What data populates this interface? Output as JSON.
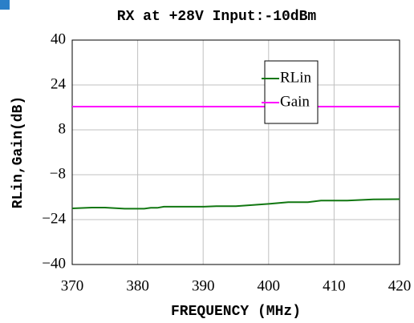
{
  "chart_data": {
    "type": "line",
    "title": "RX  at +28V Input:-10dBm",
    "x_label": "FREQUENCY (MHz)",
    "y_label": "RLin,Gain(dB)",
    "x": [
      370,
      373,
      375,
      378,
      381,
      382,
      383,
      384,
      386,
      390,
      392,
      395,
      400,
      403,
      406,
      408,
      412,
      416,
      420
    ],
    "series": [
      {
        "name": "RLin",
        "color": "#117711",
        "values": [
          -20,
          -19.7,
          -19.7,
          -20.1,
          -20.1,
          -19.8,
          -19.8,
          -19.4,
          -19.4,
          -19.4,
          -19.2,
          -19.2,
          -18.4,
          -17.8,
          -17.8,
          -17.2,
          -17.2,
          -16.8,
          -16.7
        ]
      },
      {
        "name": "Gain",
        "color": "#ff00ff",
        "values": [
          16.3,
          16.3,
          16.3,
          16.3,
          16.3,
          16.3,
          16.3,
          16.3,
          16.3,
          16.3,
          16.3,
          16.3,
          16.3,
          16.3,
          16.3,
          16.3,
          16.3,
          16.3,
          16.3
        ]
      }
    ],
    "xlim": [
      370,
      420
    ],
    "xticks": [
      370,
      380,
      390,
      400,
      410,
      420
    ],
    "ylim": [
      -40,
      40
    ],
    "yticks": [
      {
        "value": -40,
        "label": "−40"
      },
      {
        "value": -24,
        "label": "−24"
      },
      {
        "value": -8,
        "label": "−8"
      },
      8,
      24,
      40
    ],
    "grid": true,
    "legend": "upper right"
  }
}
